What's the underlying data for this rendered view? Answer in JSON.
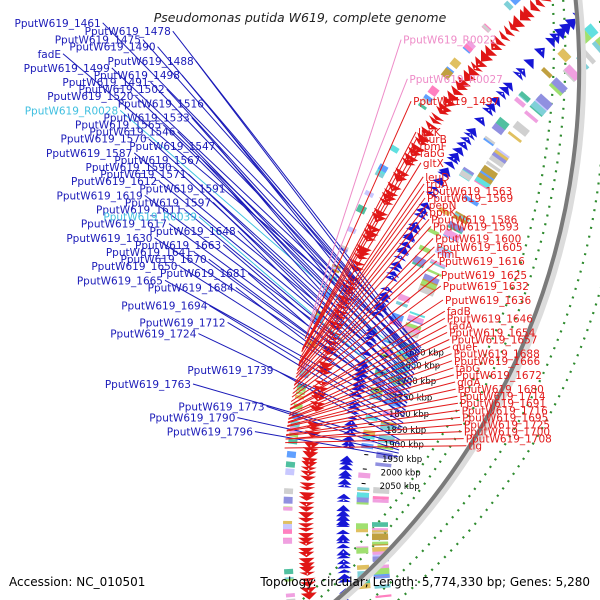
{
  "title": "Pseudomonas putida W619, complete genome",
  "accession": "Accession: NC_010501",
  "topology_summary": "Topology: circular; Length: 5,774,330 bp; Genes: 5,280",
  "colors": {
    "left_gene": "#1a1ab8",
    "left_rna": "#3fbfe0",
    "right_gene": "#e21a1a",
    "right_rna": "#ee8cc8",
    "backbone": "#7a7a7a",
    "dots": "#2e8b2e",
    "forward_arrow": "#1616d6",
    "reverse_arrow": "#e01616"
  },
  "ticks": [
    {
      "label": "1600 kbp",
      "frac": 0.03
    },
    {
      "label": "1650 kbp",
      "frac": 0.12
    },
    {
      "label": "1700 kbp",
      "frac": 0.225
    },
    {
      "label": "1750 kbp",
      "frac": 0.335
    },
    {
      "label": "1800 kbp",
      "frac": 0.445
    },
    {
      "label": "1850 kbp",
      "frac": 0.555
    },
    {
      "label": "1900 kbp",
      "frac": 0.65
    },
    {
      "label": "1950 kbp",
      "frac": 0.745
    },
    {
      "label": "2000 kbp",
      "frac": 0.835
    },
    {
      "label": "2050 kbp",
      "frac": 0.925
    }
  ],
  "left_labels": [
    {
      "text": "PputW619_1461",
      "frac": 0.005,
      "type": "gene"
    },
    {
      "text": "PputW619_1478",
      "frac": 0.02,
      "type": "gene"
    },
    {
      "text": "PputW619_1490",
      "frac": 0.04,
      "type": "gene"
    },
    {
      "text": "fadE",
      "frac": 0.05,
      "type": "gene"
    },
    {
      "text": "PputW619_1475",
      "frac": 0.035,
      "type": "gene"
    },
    {
      "text": "PputW619_1488",
      "frac": 0.055,
      "type": "gene"
    },
    {
      "text": "PputW619_1499",
      "frac": 0.07,
      "type": "gene"
    },
    {
      "text": "PputW619_1498",
      "frac": 0.085,
      "type": "gene"
    },
    {
      "text": "PputW619_1491",
      "frac": 0.09,
      "type": "gene"
    },
    {
      "text": "PputW619_1520",
      "frac": 0.11,
      "type": "gene"
    },
    {
      "text": "PputW619_1502",
      "frac": 0.105,
      "type": "gene"
    },
    {
      "text": "PputW619_R0028",
      "frac": 0.13,
      "type": "rna"
    },
    {
      "text": "PputW619_1516",
      "frac": 0.128,
      "type": "gene"
    },
    {
      "text": "PputW619_1533",
      "frac": 0.155,
      "type": "gene"
    },
    {
      "text": "PputW619_1565",
      "frac": 0.18,
      "type": "gene"
    },
    {
      "text": "PputW619_1546",
      "frac": 0.182,
      "type": "gene"
    },
    {
      "text": "PputW619_1570",
      "frac": 0.205,
      "type": "gene"
    },
    {
      "text": "PputW619_1547",
      "frac": 0.21,
      "type": "gene"
    },
    {
      "text": "PputW619_1587",
      "frac": 0.23,
      "type": "gene"
    },
    {
      "text": "PputW619_1567",
      "frac": 0.232,
      "type": "gene"
    },
    {
      "text": "PputW619_1590",
      "frac": 0.255,
      "type": "gene"
    },
    {
      "text": "PputW619_1571",
      "frac": 0.26,
      "type": "gene"
    },
    {
      "text": "PputW619_1612",
      "frac": 0.28,
      "type": "gene"
    },
    {
      "text": "PputW619_1591",
      "frac": 0.282,
      "type": "gene"
    },
    {
      "text": "PputW619_1619",
      "frac": 0.305,
      "type": "gene"
    },
    {
      "text": "PputW619_1597",
      "frac": 0.308,
      "type": "gene"
    },
    {
      "text": "PputW619_R0039",
      "frac": 0.335,
      "type": "rna"
    },
    {
      "text": "PputW619_1611",
      "frac": 0.33,
      "type": "gene"
    },
    {
      "text": "PputW619_1648",
      "frac": 0.355,
      "type": "gene"
    },
    {
      "text": "PputW619_1617",
      "frac": 0.35,
      "type": "gene"
    },
    {
      "text": "PputW619_1630",
      "frac": 0.375,
      "type": "gene"
    },
    {
      "text": "PputW619_1663",
      "frac": 0.38,
      "type": "gene"
    },
    {
      "text": "PputW619_1641",
      "frac": 0.4,
      "type": "gene"
    },
    {
      "text": "PputW619_1670",
      "frac": 0.405,
      "type": "gene"
    },
    {
      "text": "PputW619_1681",
      "frac": 0.43,
      "type": "gene"
    },
    {
      "text": "PputW619_1650",
      "frac": 0.425,
      "type": "gene"
    },
    {
      "text": "PputW619_1665",
      "frac": 0.45,
      "type": "gene"
    },
    {
      "text": "PputW619_1684",
      "frac": 0.47,
      "type": "gene"
    },
    {
      "text": "PputW619_1694",
      "frac": 0.51,
      "type": "gene"
    },
    {
      "text": "PputW619_1712",
      "frac": 0.54,
      "type": "gene"
    },
    {
      "text": "PputW619_1724",
      "frac": 0.56,
      "type": "gene"
    },
    {
      "text": "PputW619_1739",
      "frac": 0.625,
      "type": "gene"
    },
    {
      "text": "PputW619_1763",
      "frac": 0.65,
      "type": "gene"
    },
    {
      "text": "PputW619_1773",
      "frac": 0.69,
      "type": "gene"
    },
    {
      "text": "PputW619_1790",
      "frac": 0.71,
      "type": "gene"
    },
    {
      "text": "PputW619_1796",
      "frac": 0.735,
      "type": "gene"
    }
  ],
  "right_labels": [
    {
      "text": "PputW619_R0022",
      "frac": 0.035,
      "type": "rna"
    },
    {
      "text": "PputW619_R0027",
      "frac": 0.105,
      "type": "rna"
    },
    {
      "text": "PputW619_1497",
      "frac": 0.145,
      "type": "gene"
    },
    {
      "text": "lpxK",
      "frac": 0.2,
      "type": "gene"
    },
    {
      "text": "murB",
      "frac": 0.205,
      "type": "gene"
    },
    {
      "text": "rpmF",
      "frac": 0.215,
      "type": "gene"
    },
    {
      "text": "fabG",
      "frac": 0.22,
      "type": "gene"
    },
    {
      "text": "gltX",
      "frac": 0.255,
      "type": "gene"
    },
    {
      "text": "leuD",
      "frac": 0.28,
      "type": "gene"
    },
    {
      "text": "truA",
      "frac": 0.29,
      "type": "gene"
    },
    {
      "text": "PputW619_1563",
      "frac": 0.29,
      "type": "gene"
    },
    {
      "text": "PputW619_1569",
      "frac": 0.3,
      "type": "gene"
    },
    {
      "text": "pepN",
      "frac": 0.32,
      "type": "gene"
    },
    {
      "text": "ppnK",
      "frac": 0.325,
      "type": "gene"
    },
    {
      "text": "PputW619_1586",
      "frac": 0.345,
      "type": "gene"
    },
    {
      "text": "PputW619_1593",
      "frac": 0.365,
      "type": "gene"
    },
    {
      "text": "PputW619_1600",
      "frac": 0.39,
      "type": "gene"
    },
    {
      "text": "rlmL",
      "frac": 0.41,
      "type": "gene"
    },
    {
      "text": "PputW619_1605",
      "frac": 0.405,
      "type": "gene"
    },
    {
      "text": "PputW619_1616",
      "frac": 0.43,
      "type": "gene"
    },
    {
      "text": "PputW619_1625",
      "frac": 0.455,
      "type": "gene"
    },
    {
      "text": "PputW619_1632",
      "frac": 0.475,
      "type": "gene"
    },
    {
      "text": "fadB",
      "frac": 0.52,
      "type": "gene"
    },
    {
      "text": "PputW619_1636",
      "frac": 0.5,
      "type": "gene"
    },
    {
      "text": "fadA",
      "frac": 0.54,
      "type": "gene"
    },
    {
      "text": "PputW619_1646",
      "frac": 0.52,
      "type": "gene"
    },
    {
      "text": "PputW619_1654",
      "frac": 0.545,
      "type": "gene"
    },
    {
      "text": "queF",
      "frac": 0.58,
      "type": "gene"
    },
    {
      "text": "PputW619_1657",
      "frac": 0.57,
      "type": "gene"
    },
    {
      "text": "PputW619_1688",
      "frac": 0.595,
      "type": "gene"
    },
    {
      "text": "PputW619_1666",
      "frac": 0.6,
      "type": "gene"
    },
    {
      "text": "fabG",
      "frac": 0.615,
      "type": "gene"
    },
    {
      "text": "PputW619_1672",
      "frac": 0.62,
      "type": "gene"
    },
    {
      "text": "gldA",
      "frac": 0.635,
      "type": "gene"
    },
    {
      "text": "PputW619_1680",
      "frac": 0.64,
      "type": "gene"
    },
    {
      "text": "PputW619_1714",
      "frac": 0.66,
      "type": "gene"
    },
    {
      "text": "PputW619_1691",
      "frac": 0.665,
      "type": "gene"
    },
    {
      "text": "PputW619_1716",
      "frac": 0.685,
      "type": "gene"
    },
    {
      "text": "PputW619_1695",
      "frac": 0.69,
      "type": "gene"
    },
    {
      "text": "PputW619_1725",
      "frac": 0.71,
      "type": "gene"
    },
    {
      "text": "PputW619_1700",
      "frac": 0.71,
      "type": "gene"
    },
    {
      "text": "tig",
      "frac": 0.76,
      "type": "gene"
    },
    {
      "text": "PputW619_1708",
      "frac": 0.73,
      "type": "gene"
    }
  ]
}
